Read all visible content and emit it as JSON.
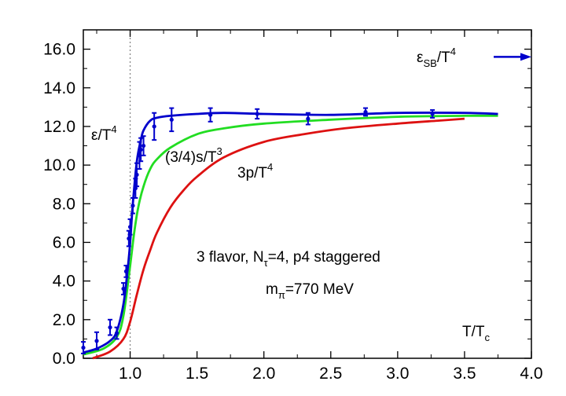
{
  "chart_data": {
    "type": "line",
    "title": "",
    "xlabel": "T/T",
    "xlabel_sub": "c",
    "ylabel": "",
    "xlim": [
      0.65,
      4.0
    ],
    "ylim": [
      0.0,
      17.0
    ],
    "x_ticks": [
      "1.0",
      "1.5",
      "2.0",
      "2.5",
      "3.0",
      "3.5",
      "4.0"
    ],
    "x_tick_values": [
      1.0,
      1.5,
      2.0,
      2.5,
      3.0,
      3.5,
      4.0
    ],
    "y_ticks": [
      "0.0",
      "2.0",
      "4.0",
      "6.0",
      "8.0",
      "10.0",
      "12.0",
      "14.0",
      "16.0"
    ],
    "y_tick_values": [
      0,
      2,
      4,
      6,
      8,
      10,
      12,
      14,
      16
    ],
    "tc_line_x": 1.0,
    "colors": {
      "energy": "#0000cc",
      "entropy": "#22dd22",
      "pressure": "#dd1111",
      "axis": "#000000",
      "tc_line": "#888888"
    },
    "series": [
      {
        "name": "energy_fit",
        "label_main": "ε/T",
        "label_sup": "4",
        "x": [
          0.65,
          0.75,
          0.85,
          0.9,
          0.95,
          0.98,
          1.0,
          1.02,
          1.05,
          1.08,
          1.1,
          1.15,
          1.2,
          1.3,
          1.5,
          1.7,
          2.0,
          2.5,
          3.0,
          3.5,
          3.75
        ],
        "y": [
          0.3,
          0.5,
          0.9,
          1.4,
          2.8,
          4.5,
          6.0,
          8.0,
          10.2,
          11.3,
          11.8,
          12.3,
          12.45,
          12.55,
          12.65,
          12.7,
          12.65,
          12.6,
          12.7,
          12.7,
          12.65
        ]
      },
      {
        "name": "energy_data",
        "points": [
          {
            "x": 0.65,
            "y": 0.55,
            "err": 0.3
          },
          {
            "x": 0.75,
            "y": 0.9,
            "err": 0.45
          },
          {
            "x": 0.85,
            "y": 1.6,
            "err": 0.4
          },
          {
            "x": 0.9,
            "y": 1.3,
            "err": 0.3
          },
          {
            "x": 0.95,
            "y": 3.6,
            "err": 0.3
          },
          {
            "x": 0.97,
            "y": 4.5,
            "err": 0.3
          },
          {
            "x": 0.99,
            "y": 6.2,
            "err": 0.4
          },
          {
            "x": 1.0,
            "y": 6.8,
            "err": 0.4
          },
          {
            "x": 1.02,
            "y": 7.9,
            "err": 0.4
          },
          {
            "x": 1.04,
            "y": 8.8,
            "err": 0.5
          },
          {
            "x": 1.05,
            "y": 9.5,
            "err": 0.6
          },
          {
            "x": 1.07,
            "y": 10.5,
            "err": 0.7
          },
          {
            "x": 1.08,
            "y": 10.8,
            "err": 0.6
          },
          {
            "x": 1.1,
            "y": 11.0,
            "err": 0.5
          },
          {
            "x": 1.18,
            "y": 12.0,
            "err": 0.7
          },
          {
            "x": 1.31,
            "y": 12.35,
            "err": 0.6
          },
          {
            "x": 1.6,
            "y": 12.6,
            "err": 0.35
          },
          {
            "x": 1.95,
            "y": 12.65,
            "err": 0.25
          },
          {
            "x": 2.33,
            "y": 12.4,
            "err": 0.3
          },
          {
            "x": 2.76,
            "y": 12.75,
            "err": 0.2
          },
          {
            "x": 3.26,
            "y": 12.65,
            "err": 0.2
          }
        ]
      },
      {
        "name": "entropy",
        "label_main": "(3/4)s/T",
        "label_sup": "3",
        "x": [
          0.65,
          0.8,
          0.9,
          0.95,
          1.0,
          1.03,
          1.06,
          1.1,
          1.15,
          1.2,
          1.3,
          1.5,
          1.7,
          2.0,
          2.5,
          3.0,
          3.5,
          3.75
        ],
        "y": [
          0.2,
          0.5,
          1.1,
          2.2,
          4.8,
          6.5,
          7.8,
          8.9,
          9.8,
          10.3,
          10.9,
          11.6,
          11.9,
          12.15,
          12.35,
          12.5,
          12.55,
          12.55
        ]
      },
      {
        "name": "pressure",
        "label_main": "3p/T",
        "label_sup": "4",
        "x": [
          0.72,
          0.85,
          0.95,
          1.0,
          1.05,
          1.1,
          1.15,
          1.2,
          1.3,
          1.4,
          1.5,
          1.7,
          2.0,
          2.3,
          2.6,
          3.0,
          3.3,
          3.5
        ],
        "y": [
          0.0,
          0.35,
          1.0,
          1.9,
          3.3,
          4.6,
          5.6,
          6.5,
          7.8,
          8.7,
          9.4,
          10.4,
          11.2,
          11.6,
          11.9,
          12.15,
          12.3,
          12.4
        ]
      }
    ],
    "sb_limit": {
      "label_main": "ε",
      "label_sub": "SB",
      "label_after": "/T",
      "label_sup": "4",
      "value": 15.6
    },
    "annotations": {
      "line1_a": "3 flavor, N",
      "line1_sub": "τ",
      "line1_b": "=4, p4 staggered",
      "line2_a": "m",
      "line2_sub": "π",
      "line2_b": "=770 MeV"
    }
  }
}
